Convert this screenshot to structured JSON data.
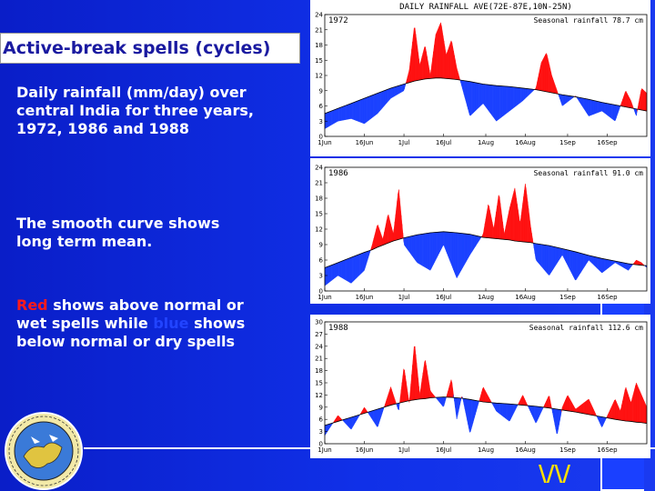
{
  "slide": {
    "title": "Active-break spells (cycles)",
    "para1": "Daily rainfall (mm/day) over central India for three years, 1972, 1986 and 1988",
    "para2": "The smooth curve shows long term mean.",
    "para3_red": "Red",
    "para3_mid": " shows above normal or wet spells while ",
    "para3_blue": "blue",
    "para3_end": " shows below normal or dry spells",
    "corner_mark": "\\/\\/"
  },
  "colors": {
    "background": "#0a1fd0",
    "wet": "#ff1010",
    "dry": "#1a40ff",
    "mean_curve": "#000000"
  },
  "chart_data": [
    {
      "type": "area",
      "title": "DAILY RAINFALL AVE(72E-87E,10N-25N)",
      "year_label": "1972",
      "seasonal_label": "Seasonal rainfall 78.7 cm",
      "x_ticks": [
        "1Jun",
        "16Jun",
        "1Jul",
        "16Jul",
        "1Aug",
        "16Aug",
        "1Sep",
        "16Sep"
      ],
      "y_ticks": [
        0,
        3,
        6,
        9,
        12,
        15,
        18,
        21,
        24
      ],
      "ylim": [
        0,
        24
      ],
      "xlim_days": [
        0,
        122
      ],
      "x": [
        0,
        5,
        10,
        15,
        20,
        25,
        30,
        32,
        34,
        36,
        38,
        40,
        42,
        44,
        46,
        48,
        50,
        55,
        60,
        65,
        70,
        75,
        80,
        82,
        84,
        86,
        88,
        90,
        95,
        100,
        105,
        110,
        112,
        114,
        116,
        118,
        120,
        122
      ],
      "mean": [
        4.5,
        5.5,
        6.5,
        7.5,
        8.5,
        9.5,
        10.3,
        10.6,
        10.9,
        11.1,
        11.3,
        11.4,
        11.5,
        11.5,
        11.4,
        11.3,
        11.2,
        10.8,
        10.3,
        10.0,
        9.8,
        9.5,
        9.2,
        9.0,
        8.8,
        8.6,
        8.4,
        8.2,
        7.8,
        7.3,
        6.7,
        6.2,
        6.0,
        5.8,
        5.6,
        5.4,
        5.2,
        5.0
      ],
      "values": [
        1.5,
        3.0,
        3.5,
        2.5,
        4.5,
        7.5,
        9.0,
        13.0,
        22.0,
        14.0,
        18.0,
        12.0,
        20.0,
        22.5,
        16.0,
        19.0,
        13.5,
        4.0,
        6.5,
        3.0,
        5.0,
        7.0,
        9.5,
        14.5,
        16.5,
        12.0,
        9.0,
        6.0,
        8.0,
        4.0,
        5.0,
        3.0,
        6.0,
        9.0,
        7.0,
        4.0,
        9.5,
        8.5
      ]
    },
    {
      "type": "area",
      "title": "",
      "year_label": "1986",
      "seasonal_label": "Seasonal rainfall 91.0 cm",
      "x_ticks": [
        "1Jun",
        "16Jun",
        "1Jul",
        "16Jul",
        "1Aug",
        "16Aug",
        "1Sep",
        "16Sep"
      ],
      "y_ticks": [
        0,
        3,
        6,
        9,
        12,
        15,
        18,
        21,
        24
      ],
      "ylim": [
        0,
        24
      ],
      "xlim_days": [
        0,
        122
      ],
      "x": [
        0,
        5,
        10,
        15,
        18,
        20,
        22,
        24,
        26,
        28,
        30,
        35,
        40,
        45,
        50,
        55,
        60,
        62,
        64,
        66,
        68,
        70,
        72,
        74,
        76,
        78,
        80,
        85,
        90,
        95,
        100,
        105,
        110,
        115,
        118,
        120,
        122
      ],
      "mean": [
        4.5,
        5.5,
        6.5,
        7.5,
        8.0,
        8.5,
        8.9,
        9.3,
        9.7,
        10.0,
        10.3,
        10.9,
        11.3,
        11.5,
        11.3,
        11.0,
        10.4,
        10.3,
        10.2,
        10.1,
        10.0,
        9.9,
        9.7,
        9.6,
        9.5,
        9.4,
        9.2,
        8.8,
        8.2,
        7.6,
        6.9,
        6.3,
        5.8,
        5.3,
        5.1,
        5.0,
        4.9
      ],
      "values": [
        1.0,
        3.0,
        1.5,
        4.0,
        9.0,
        13.0,
        10.0,
        15.0,
        11.0,
        20.0,
        9.0,
        5.5,
        4.0,
        9.0,
        2.5,
        7.0,
        11.0,
        17.0,
        12.0,
        19.0,
        11.0,
        16.0,
        20.0,
        13.0,
        21.0,
        12.5,
        6.0,
        3.0,
        7.0,
        2.0,
        6.0,
        3.5,
        5.5,
        4.0,
        6.0,
        5.5,
        4.5
      ]
    },
    {
      "type": "area",
      "title": "",
      "year_label": "1988",
      "seasonal_label": "Seasonal rainfall 112.6 cm",
      "x_ticks": [
        "1Jun",
        "16Jun",
        "1Jul",
        "16Jul",
        "1Aug",
        "16Aug",
        "1Sep",
        "16Sep"
      ],
      "y_ticks": [
        0,
        3,
        6,
        9,
        12,
        15,
        18,
        21,
        24,
        27,
        30
      ],
      "ylim": [
        0,
        30
      ],
      "xlim_days": [
        0,
        122
      ],
      "x": [
        0,
        5,
        10,
        15,
        20,
        25,
        28,
        30,
        32,
        34,
        36,
        38,
        40,
        45,
        48,
        50,
        52,
        55,
        60,
        65,
        70,
        75,
        80,
        85,
        88,
        90,
        92,
        95,
        100,
        105,
        110,
        112,
        114,
        116,
        118,
        120,
        122
      ],
      "mean": [
        4.5,
        5.5,
        6.5,
        7.5,
        8.5,
        9.5,
        10.0,
        10.3,
        10.6,
        10.8,
        11.0,
        11.1,
        11.3,
        11.5,
        11.4,
        11.3,
        11.2,
        10.9,
        10.3,
        10.0,
        9.8,
        9.5,
        9.2,
        8.8,
        8.5,
        8.3,
        8.1,
        7.8,
        7.2,
        6.6,
        6.0,
        5.8,
        5.6,
        5.5,
        5.3,
        5.2,
        5.0
      ],
      "values": [
        2.0,
        7.0,
        3.5,
        9.0,
        4.0,
        14.0,
        8.0,
        19.0,
        10.0,
        25.0,
        12.0,
        21.0,
        13.0,
        9.0,
        16.0,
        6.0,
        12.0,
        2.5,
        14.0,
        8.0,
        5.5,
        12.0,
        5.0,
        12.0,
        2.0,
        9.0,
        12.0,
        8.5,
        11.0,
        4.0,
        11.0,
        8.0,
        14.0,
        10.0,
        15.0,
        12.0,
        9.0
      ]
    }
  ]
}
